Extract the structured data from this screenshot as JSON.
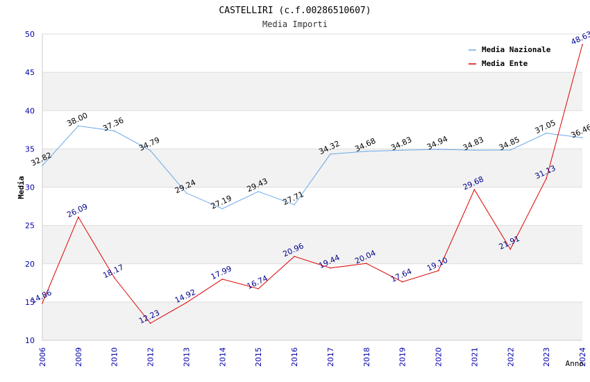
{
  "chart_data": {
    "type": "line",
    "title": "CASTELLIRI (c.f.00286510607)",
    "subtitle": "Media Importi",
    "xlabel": "Anno",
    "ylabel": "Media",
    "ylim": [
      10,
      50
    ],
    "yticks": [
      10,
      15,
      20,
      25,
      30,
      35,
      40,
      45,
      50
    ],
    "categories": [
      "2006",
      "2009",
      "2010",
      "2012",
      "2013",
      "2014",
      "2015",
      "2016",
      "2017",
      "2018",
      "2019",
      "2020",
      "2021",
      "2022",
      "2023",
      "2024"
    ],
    "legend_position": "top-right",
    "series": [
      {
        "name": "Media Nazionale",
        "color": "#6aa8e8",
        "label_color": "#000000",
        "values": [
          32.82,
          38.0,
          37.36,
          34.79,
          29.24,
          27.19,
          29.43,
          27.71,
          34.32,
          34.68,
          34.83,
          34.94,
          34.83,
          34.85,
          37.05,
          36.46
        ],
        "labels": [
          "32.82",
          "38.00",
          "37.36",
          "34.79",
          "29.24",
          "27.19",
          "29.43",
          "27.71",
          "34.32",
          "34.68",
          "34.83",
          "34.94",
          "34.83",
          "34.85",
          "37.05",
          "36.46"
        ]
      },
      {
        "name": "Media Ente",
        "color": "#dd0000",
        "label_color": "#00008b",
        "values": [
          14.86,
          26.09,
          18.17,
          12.23,
          14.92,
          17.99,
          16.74,
          20.96,
          19.44,
          20.04,
          17.64,
          19.1,
          29.68,
          21.91,
          31.13,
          48.63
        ],
        "labels": [
          "14.86",
          "26.09",
          "18.17",
          "12.23",
          "14.92",
          "17.99",
          "16.74",
          "20.96",
          "19.44",
          "20.04",
          "17.64",
          "19.10",
          "29.68",
          "21.91",
          "31.13",
          "48.63"
        ]
      }
    ],
    "colors": {
      "band": "#f2f2f2",
      "grid": "#dddddd",
      "axis_tick_text": "#0000aa",
      "title_text": "#000000",
      "subtitle_text": "#333333"
    }
  }
}
